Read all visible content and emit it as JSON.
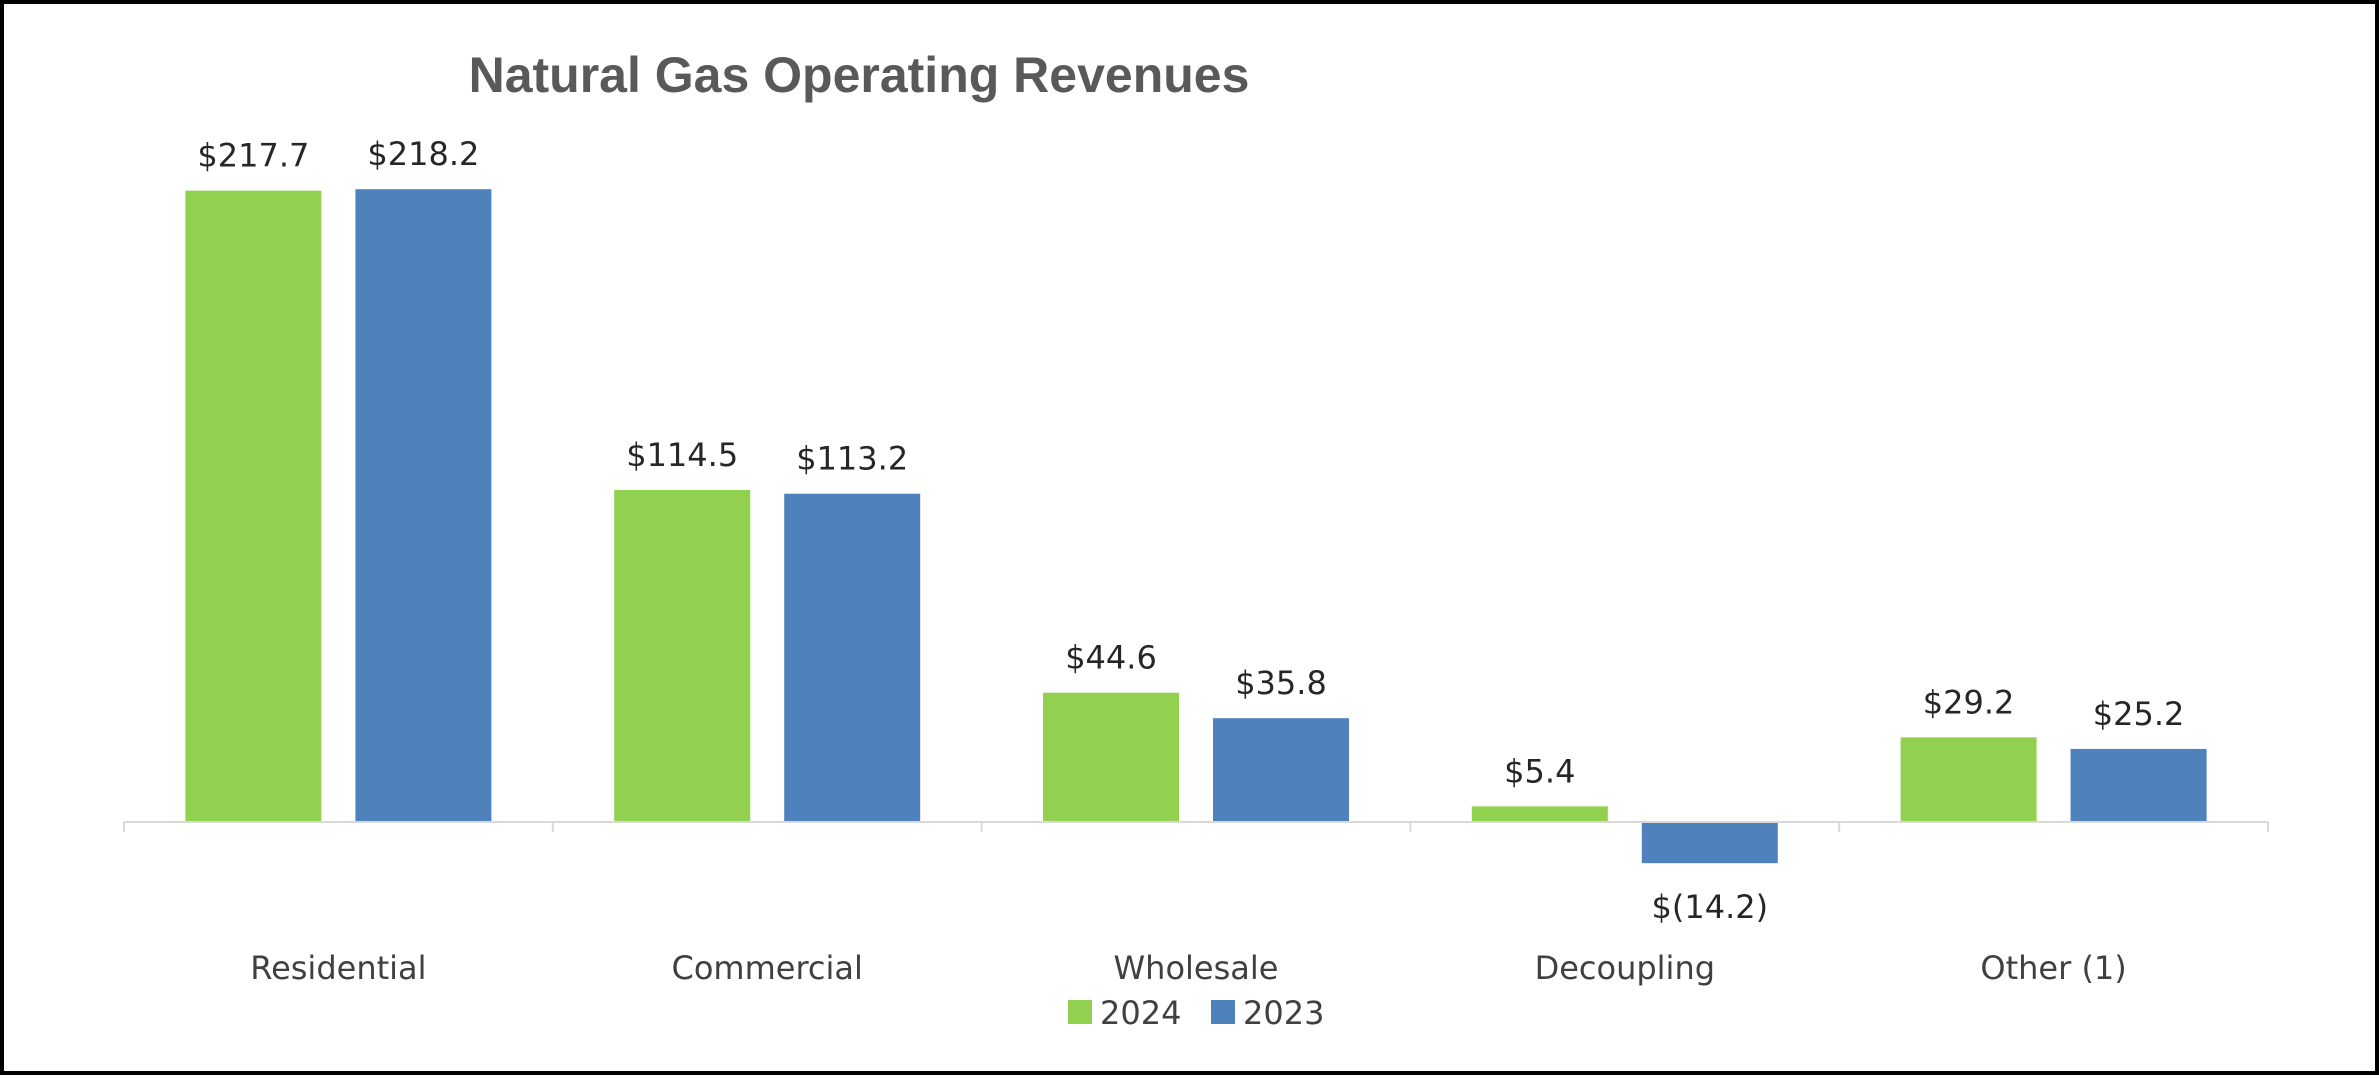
{
  "chart_data": {
    "type": "bar",
    "title": "Natural Gas Operating Revenues",
    "xlabel": "",
    "ylabel": "",
    "grid": false,
    "legend_position": "bottom",
    "ylim": [
      -20,
      230
    ],
    "categories": [
      "Residential",
      "Commercial",
      "Wholesale",
      "Decoupling",
      "Other (1)"
    ],
    "series": [
      {
        "name": "2024",
        "color": "#92D050",
        "values": [
          217.7,
          114.5,
          44.6,
          5.4,
          29.2
        ],
        "labels": [
          "$217.7",
          "$114.5",
          "$44.6",
          "$5.4",
          "$29.2"
        ]
      },
      {
        "name": "2023",
        "color": "#4F81BD",
        "values": [
          218.2,
          113.2,
          35.8,
          -14.2,
          25.2
        ],
        "labels": [
          "$218.2",
          "$113.2",
          "$35.8",
          "$(14.2)",
          "$25.2"
        ]
      }
    ]
  },
  "colors": {
    "axis": "#D9D9D9",
    "frame": "#000000"
  }
}
